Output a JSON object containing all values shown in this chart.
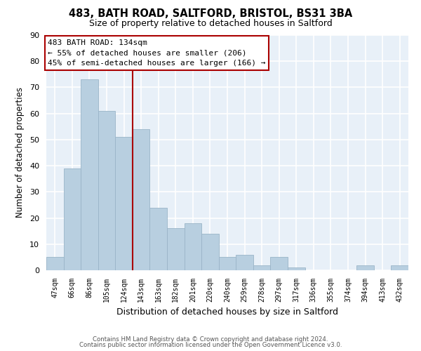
{
  "title": "483, BATH ROAD, SALTFORD, BRISTOL, BS31 3BA",
  "subtitle": "Size of property relative to detached houses in Saltford",
  "xlabel": "Distribution of detached houses by size in Saltford",
  "ylabel": "Number of detached properties",
  "bar_color": "#b8cfe0",
  "bar_edge_color": "#9ab4c8",
  "categories": [
    "47sqm",
    "66sqm",
    "86sqm",
    "105sqm",
    "124sqm",
    "143sqm",
    "163sqm",
    "182sqm",
    "201sqm",
    "220sqm",
    "240sqm",
    "259sqm",
    "278sqm",
    "297sqm",
    "317sqm",
    "336sqm",
    "355sqm",
    "374sqm",
    "394sqm",
    "413sqm",
    "432sqm"
  ],
  "values": [
    5,
    39,
    73,
    61,
    51,
    54,
    24,
    16,
    18,
    14,
    5,
    6,
    2,
    5,
    1,
    0,
    0,
    0,
    2,
    0,
    2
  ],
  "ylim": [
    0,
    90
  ],
  "yticks": [
    0,
    10,
    20,
    30,
    40,
    50,
    60,
    70,
    80,
    90
  ],
  "vline_x": 4.5,
  "vline_color": "#aa0000",
  "annotation_title": "483 BATH ROAD: 134sqm",
  "annotation_line1": "← 55% of detached houses are smaller (206)",
  "annotation_line2": "45% of semi-detached houses are larger (166) →",
  "annotation_box_color": "#ffffff",
  "annotation_box_edge": "#aa0000",
  "footer1": "Contains HM Land Registry data © Crown copyright and database right 2024.",
  "footer2": "Contains public sector information licensed under the Open Government Licence v3.0.",
  "background_color": "#ffffff",
  "plot_bg_color": "#e8f0f8",
  "grid_color": "#ffffff"
}
